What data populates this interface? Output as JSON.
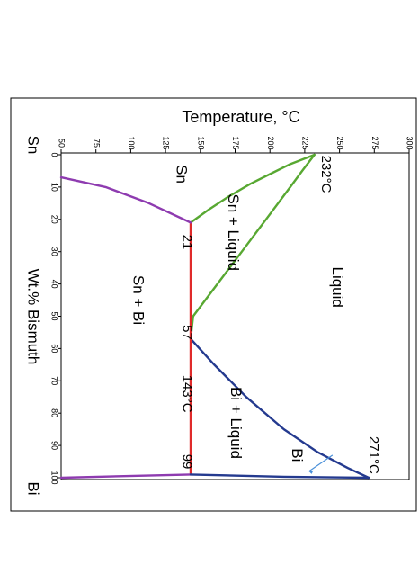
{
  "chart_data": {
    "type": "line",
    "orientation": "rotated-90-clockwise",
    "title": "",
    "temperature_label": "Temperature, °C",
    "temperature_range": [
      50,
      300
    ],
    "temperature_ticks": [
      "50",
      "75",
      "100",
      "125",
      "150",
      "175",
      "200",
      "225",
      "250",
      "275",
      "300"
    ],
    "composition_label": "Wt.% Bismuth",
    "composition_range": [
      0,
      100
    ],
    "composition_ticks": [
      "0",
      "10",
      "20",
      "30",
      "40",
      "50",
      "60",
      "70",
      "80",
      "90",
      "100"
    ],
    "component_left": "Sn",
    "component_right": "Bi",
    "series": [
      {
        "color": "#58a832",
        "x": [
          0,
          1,
          3,
          6,
          9,
          13,
          17,
          21
        ],
        "y": [
          232,
          226,
          214,
          200,
          186,
          170,
          156,
          143
        ]
      },
      {
        "color": "#58a832",
        "x": [
          0,
          5,
          10,
          20,
          30,
          40,
          50,
          57
        ],
        "y": [
          232,
          223.2,
          214.6,
          197.2,
          179.8,
          162.3,
          144.8,
          143
        ]
      },
      {
        "color": "#243a8f",
        "x": [
          57,
          65,
          75,
          85,
          92,
          97,
          100
        ],
        "y": [
          143,
          160,
          183,
          210,
          234,
          256,
          271
        ]
      },
      {
        "color": "#e02a2a",
        "x": [
          21,
          99
        ],
        "y": [
          143,
          143
        ]
      },
      {
        "color": "#8e3bb0",
        "x": [
          7,
          10,
          15,
          21
        ],
        "y": [
          50,
          82,
          113,
          143
        ]
      },
      {
        "color": "#8e3bb0",
        "x": [
          99,
          99.5,
          100
        ],
        "y": [
          143,
          95,
          50
        ]
      },
      {
        "color": "#243a8f",
        "x": [
          99,
          99.7,
          100
        ],
        "y": [
          143,
          210,
          271
        ]
      }
    ],
    "annotations": [
      {
        "text": "232°C",
        "x": 6,
        "y": 240
      },
      {
        "text": "271°C",
        "x": 93,
        "y": 274
      },
      {
        "text": "21",
        "x": 27,
        "y": 140
      },
      {
        "text": "57",
        "x": 55,
        "y": 140
      },
      {
        "text": "143°C",
        "x": 74,
        "y": 140
      },
      {
        "text": "99",
        "x": 95,
        "y": 140
      }
    ],
    "regions": [
      {
        "text": "Sn",
        "x": 6,
        "y": 136
      },
      {
        "text": "Sn + Liquid",
        "x": 24,
        "y": 173
      },
      {
        "text": "Liquid",
        "x": 41,
        "y": 248
      },
      {
        "text": "Sn + Bi",
        "x": 45,
        "y": 105
      },
      {
        "text": "Bi + Liquid",
        "x": 83,
        "y": 175
      },
      {
        "text": "Bi",
        "x": 93,
        "y": 219
      }
    ],
    "grid": false,
    "legend": "none"
  }
}
